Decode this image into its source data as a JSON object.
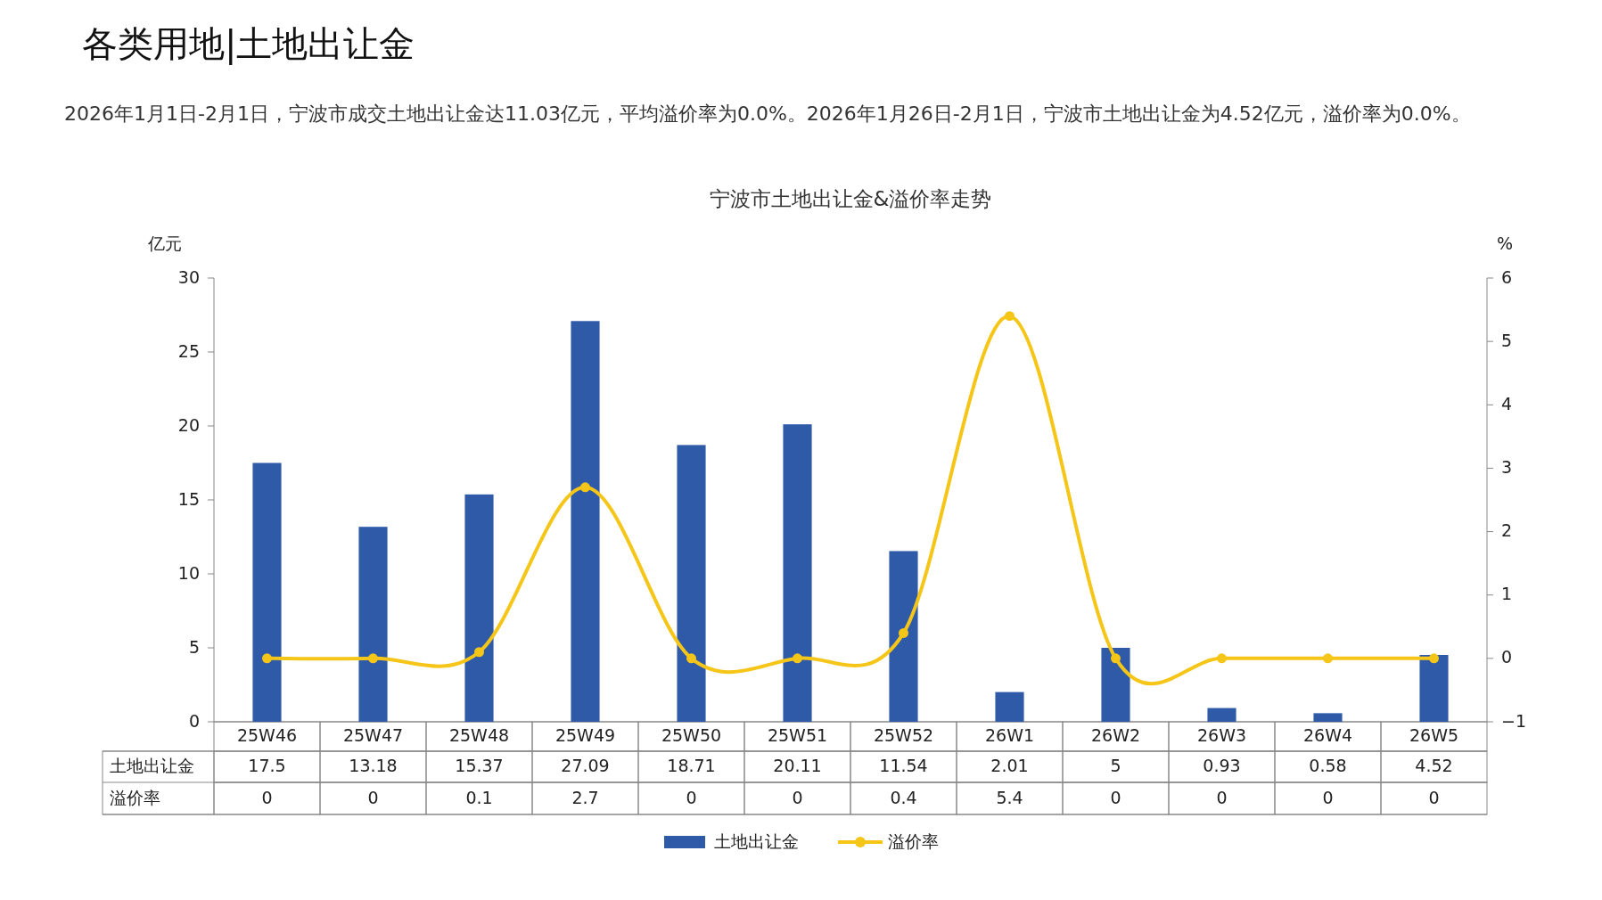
{
  "chart_data": {
    "type": "bar",
    "title": "各类用地|土地出让金",
    "subtitle": "2026年1月1日-2月1日，宁波市成交土地出让金达11.03亿元，平均溢价率为0.0%。2026年1月26日-2月1日，宁波市土地出让金为4.52亿元，溢价率为0.0%。",
    "annotations": [
      "宁波市土地出让金&溢价率走势"
    ],
    "ylabel": "亿元",
    "y2label": "%",
    "categories": [
      "25W46",
      "25W47",
      "25W48",
      "25W49",
      "25W50",
      "25W51",
      "25W52",
      "26W1",
      "26W2",
      "26W3",
      "26W4",
      "26W5"
    ],
    "series": [
      {
        "name": "土地出让金",
        "color": "#2e5aa8",
        "values": [
          17.5,
          13.18,
          15.37,
          27.09,
          18.71,
          20.11,
          11.54,
          2.01,
          5,
          0.93,
          0.58,
          4.52
        ]
      },
      {
        "name": "溢价率",
        "type": "line",
        "axis": "y2",
        "color": "#f5c518",
        "values": [
          0,
          0,
          0.1,
          2.7,
          0,
          0,
          0.4,
          5.4,
          0,
          0,
          0,
          0
        ]
      }
    ],
    "ylim": [
      0,
      30
    ],
    "yticks": [
      0,
      5,
      10,
      15,
      20,
      25,
      30
    ],
    "y2lim": [
      -1,
      6
    ],
    "y2ticks": [
      -1,
      0,
      1,
      2,
      3,
      4,
      5,
      6
    ],
    "data_labels": true,
    "legend": "bottom",
    "grid": false,
    "marker": "circle",
    "line_style": "solid"
  }
}
